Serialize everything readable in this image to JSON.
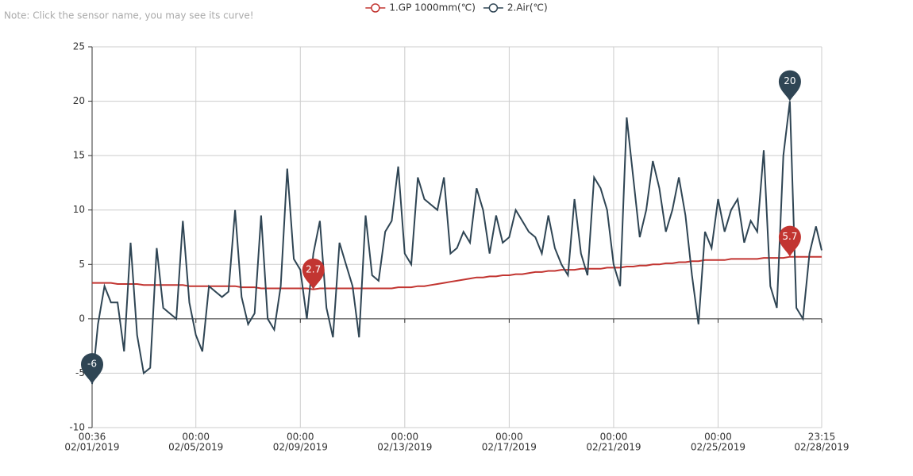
{
  "note": "Note: Click the sensor name, you may see its curve!",
  "chart_data": {
    "type": "line",
    "x": [
      "2019-02-01T00:36",
      "2019-02-01T06:00",
      "2019-02-01T12:00",
      "2019-02-01T18:00",
      "2019-02-02T00:00",
      "2019-02-02T06:00",
      "2019-02-02T12:00",
      "2019-02-02T18:00",
      "2019-02-03T00:00",
      "2019-02-03T06:00",
      "2019-02-03T12:00",
      "2019-02-03T18:00",
      "2019-02-04T00:00",
      "2019-02-04T06:00",
      "2019-02-04T12:00",
      "2019-02-04T18:00",
      "2019-02-05T00:00",
      "2019-02-05T06:00",
      "2019-02-05T12:00",
      "2019-02-05T18:00",
      "2019-02-06T00:00",
      "2019-02-06T06:00",
      "2019-02-06T12:00",
      "2019-02-06T18:00",
      "2019-02-07T00:00",
      "2019-02-07T06:00",
      "2019-02-07T12:00",
      "2019-02-07T18:00",
      "2019-02-08T00:00",
      "2019-02-08T06:00",
      "2019-02-08T12:00",
      "2019-02-08T18:00",
      "2019-02-09T00:00",
      "2019-02-09T06:00",
      "2019-02-09T12:00",
      "2019-02-09T18:00",
      "2019-02-10T00:00",
      "2019-02-10T06:00",
      "2019-02-10T12:00",
      "2019-02-10T18:00",
      "2019-02-11T00:00",
      "2019-02-11T06:00",
      "2019-02-11T12:00",
      "2019-02-11T18:00",
      "2019-02-12T00:00",
      "2019-02-12T06:00",
      "2019-02-12T12:00",
      "2019-02-12T18:00",
      "2019-02-13T00:00",
      "2019-02-13T06:00",
      "2019-02-13T12:00",
      "2019-02-13T18:00",
      "2019-02-14T00:00",
      "2019-02-14T06:00",
      "2019-02-14T12:00",
      "2019-02-14T18:00",
      "2019-02-15T00:00",
      "2019-02-15T06:00",
      "2019-02-15T12:00",
      "2019-02-15T18:00",
      "2019-02-16T00:00",
      "2019-02-16T06:00",
      "2019-02-16T12:00",
      "2019-02-16T18:00",
      "2019-02-17T00:00",
      "2019-02-17T06:00",
      "2019-02-17T12:00",
      "2019-02-17T18:00",
      "2019-02-18T00:00",
      "2019-02-18T06:00",
      "2019-02-18T12:00",
      "2019-02-18T18:00",
      "2019-02-19T00:00",
      "2019-02-19T06:00",
      "2019-02-19T12:00",
      "2019-02-19T18:00",
      "2019-02-20T00:00",
      "2019-02-20T06:00",
      "2019-02-20T12:00",
      "2019-02-20T18:00",
      "2019-02-21T00:00",
      "2019-02-21T06:00",
      "2019-02-21T12:00",
      "2019-02-21T18:00",
      "2019-02-22T00:00",
      "2019-02-22T06:00",
      "2019-02-22T12:00",
      "2019-02-22T18:00",
      "2019-02-23T00:00",
      "2019-02-23T06:00",
      "2019-02-23T12:00",
      "2019-02-23T18:00",
      "2019-02-24T00:00",
      "2019-02-24T06:00",
      "2019-02-24T12:00",
      "2019-02-24T18:00",
      "2019-02-25T00:00",
      "2019-02-25T06:00",
      "2019-02-25T12:00",
      "2019-02-25T18:00",
      "2019-02-26T00:00",
      "2019-02-26T06:00",
      "2019-02-26T12:00",
      "2019-02-26T18:00",
      "2019-02-27T00:00",
      "2019-02-27T06:00",
      "2019-02-27T12:00",
      "2019-02-27T18:00",
      "2019-02-28T00:00",
      "2019-02-28T06:00",
      "2019-02-28T12:00",
      "2019-02-28T18:00",
      "2019-02-28T23:15"
    ],
    "series": [
      {
        "name": "1.GP 1000mm(℃)",
        "color": "#c23531",
        "values": [
          3.3,
          3.3,
          3.3,
          3.3,
          3.2,
          3.2,
          3.2,
          3.2,
          3.1,
          3.1,
          3.1,
          3.1,
          3.1,
          3.1,
          3.1,
          3.0,
          3.0,
          3.0,
          3.0,
          3.0,
          3.0,
          3.0,
          3.0,
          2.9,
          2.9,
          2.9,
          2.8,
          2.8,
          2.8,
          2.8,
          2.8,
          2.8,
          2.8,
          2.8,
          2.7,
          2.8,
          2.8,
          2.8,
          2.8,
          2.8,
          2.8,
          2.8,
          2.8,
          2.8,
          2.8,
          2.8,
          2.8,
          2.9,
          2.9,
          2.9,
          3.0,
          3.0,
          3.1,
          3.2,
          3.3,
          3.4,
          3.5,
          3.6,
          3.7,
          3.8,
          3.8,
          3.9,
          3.9,
          4.0,
          4.0,
          4.1,
          4.1,
          4.2,
          4.3,
          4.3,
          4.4,
          4.4,
          4.5,
          4.5,
          4.5,
          4.6,
          4.6,
          4.6,
          4.6,
          4.7,
          4.7,
          4.7,
          4.8,
          4.8,
          4.9,
          4.9,
          5.0,
          5.0,
          5.1,
          5.1,
          5.2,
          5.2,
          5.3,
          5.3,
          5.4,
          5.4,
          5.4,
          5.4,
          5.5,
          5.5,
          5.5,
          5.5,
          5.5,
          5.6,
          5.6,
          5.6,
          5.6,
          5.7,
          5.7,
          5.7,
          5.7,
          5.7,
          5.7
        ],
        "mark_points": [
          {
            "x": "2019-02-09T12:00",
            "value": 2.7
          },
          {
            "x": "2019-02-27T18:00",
            "value": 5.7
          }
        ]
      },
      {
        "name": "2.Air(℃)",
        "color": "#2f4554",
        "values": [
          -6,
          -0.5,
          3,
          1.5,
          1.5,
          -3,
          7,
          -1.5,
          -5,
          -4.5,
          6.5,
          1,
          0.5,
          0,
          9,
          1.5,
          -1.5,
          -3,
          3,
          2.5,
          2,
          2.5,
          10,
          2,
          -0.5,
          0.5,
          9.5,
          0,
          -1,
          3,
          13.8,
          5.5,
          4.5,
          0,
          6,
          9,
          1,
          -1.7,
          7,
          5,
          3,
          -1.7,
          9.5,
          4,
          3.5,
          8,
          9,
          14,
          6,
          5,
          13,
          11,
          10.5,
          10,
          13,
          6,
          6.5,
          8,
          7,
          12,
          10,
          6,
          9.5,
          7,
          7.5,
          10,
          9,
          8,
          7.5,
          6,
          9.5,
          6.5,
          5,
          4,
          11,
          6,
          4,
          13,
          12,
          10,
          5,
          3,
          18.5,
          13,
          7.5,
          10,
          14.5,
          12,
          8,
          10,
          13,
          9.5,
          4,
          -0.5,
          8,
          6.5,
          11,
          8,
          10,
          11,
          7,
          9,
          8,
          15.5,
          3,
          1,
          15,
          20,
          1,
          0,
          6,
          8.5,
          6.3
        ],
        "mark_points": [
          {
            "x": "2019-02-01T00:36",
            "value": -6
          },
          {
            "x": "2019-02-27T18:00",
            "value": 20
          }
        ]
      }
    ],
    "xlim": [
      "2019-02-01T00:36",
      "2019-02-28T23:15"
    ],
    "xticks": [
      {
        "value": "2019-02-01T00:36",
        "label": [
          "00:36",
          "02/01/2019"
        ]
      },
      {
        "value": "2019-02-05T00:00",
        "label": [
          "00:00",
          "02/05/2019"
        ]
      },
      {
        "value": "2019-02-09T00:00",
        "label": [
          "00:00",
          "02/09/2019"
        ]
      },
      {
        "value": "2019-02-13T00:00",
        "label": [
          "00:00",
          "02/13/2019"
        ]
      },
      {
        "value": "2019-02-17T00:00",
        "label": [
          "00:00",
          "02/17/2019"
        ]
      },
      {
        "value": "2019-02-21T00:00",
        "label": [
          "00:00",
          "02/21/2019"
        ]
      },
      {
        "value": "2019-02-25T00:00",
        "label": [
          "00:00",
          "02/25/2019"
        ]
      },
      {
        "value": "2019-02-28T23:15",
        "label": [
          "23:15",
          "02/28/2019"
        ]
      }
    ],
    "ylim": [
      -10,
      25
    ],
    "yticks": [
      -10,
      -5,
      0,
      5,
      10,
      15,
      20,
      25
    ],
    "grid": true,
    "legend": "top"
  }
}
